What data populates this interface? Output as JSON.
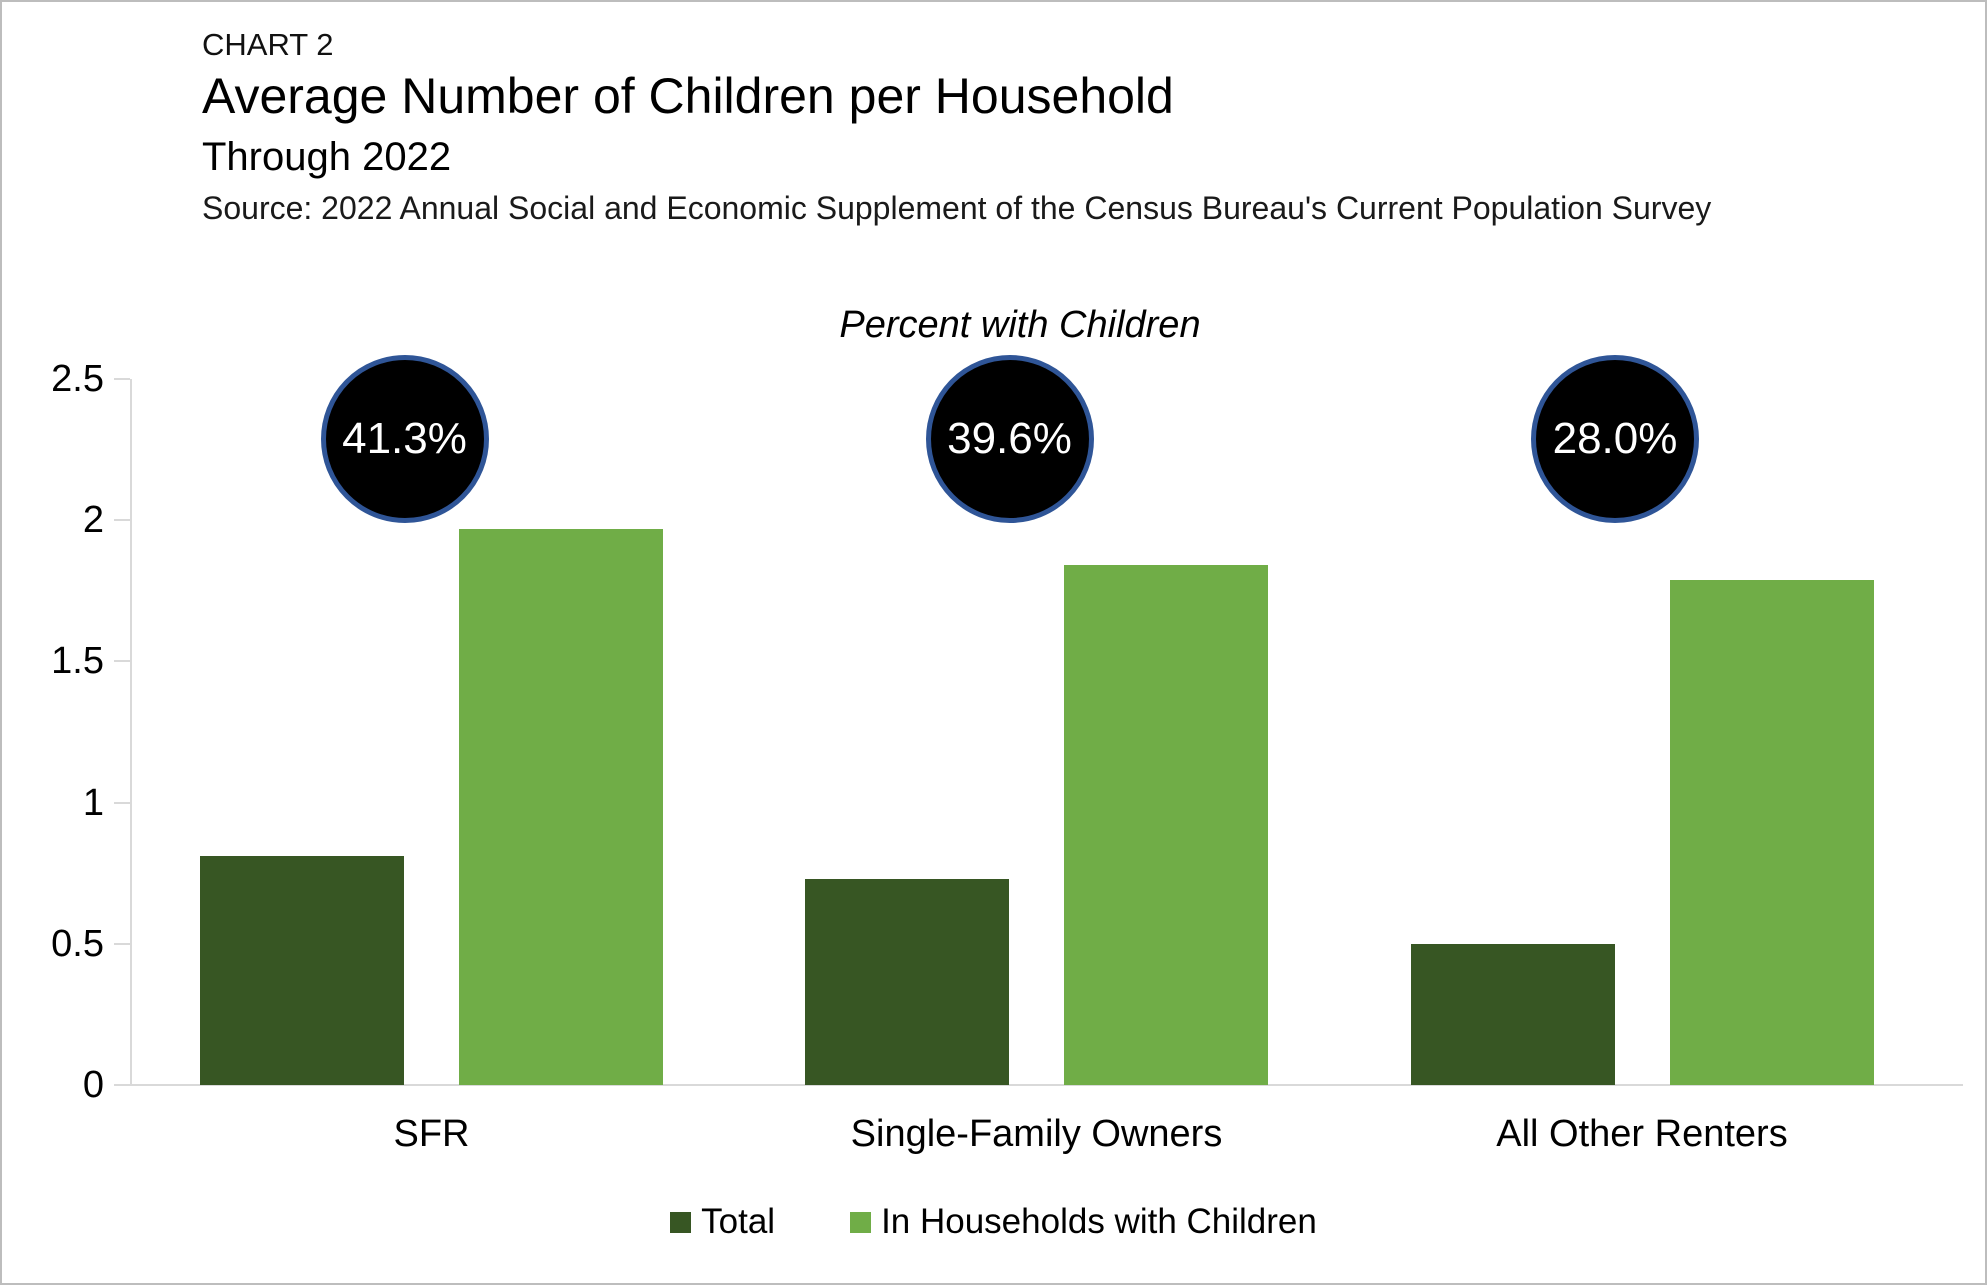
{
  "header": {
    "kicker": "CHART 2",
    "title": "Average Number of Children per Household",
    "subtitle": "Through 2022",
    "source": "Source: 2022 Annual Social and Economic Supplement of the Census Bureau's Current Population Survey"
  },
  "chart_data": {
    "type": "bar",
    "annotation_title": "Percent with Children",
    "categories": [
      "SFR",
      "Single-Family Owners",
      "All Other Renters"
    ],
    "series": [
      {
        "name": "Total",
        "color": "#375623",
        "values": [
          0.81,
          0.73,
          0.5
        ]
      },
      {
        "name": "In Households with Children",
        "color": "#70AD47",
        "values": [
          1.97,
          1.84,
          1.79
        ]
      }
    ],
    "percent_with_children": [
      "41.3%",
      "39.6%",
      "28.0%"
    ],
    "y_axis": {
      "min": 0,
      "max": 2.5,
      "tick_step": 0.5,
      "tick_labels": [
        "0",
        "0.5",
        "1",
        "1.5",
        "2",
        "2.5"
      ]
    },
    "xlabel": "",
    "ylabel": "",
    "grid": false,
    "legend_position": "bottom",
    "colors": {
      "annotation_circle_fill": "#000000",
      "annotation_circle_border": "#2F5597",
      "annotation_text": "#FFFFFF",
      "axis_line": "#D9D9D9"
    }
  }
}
